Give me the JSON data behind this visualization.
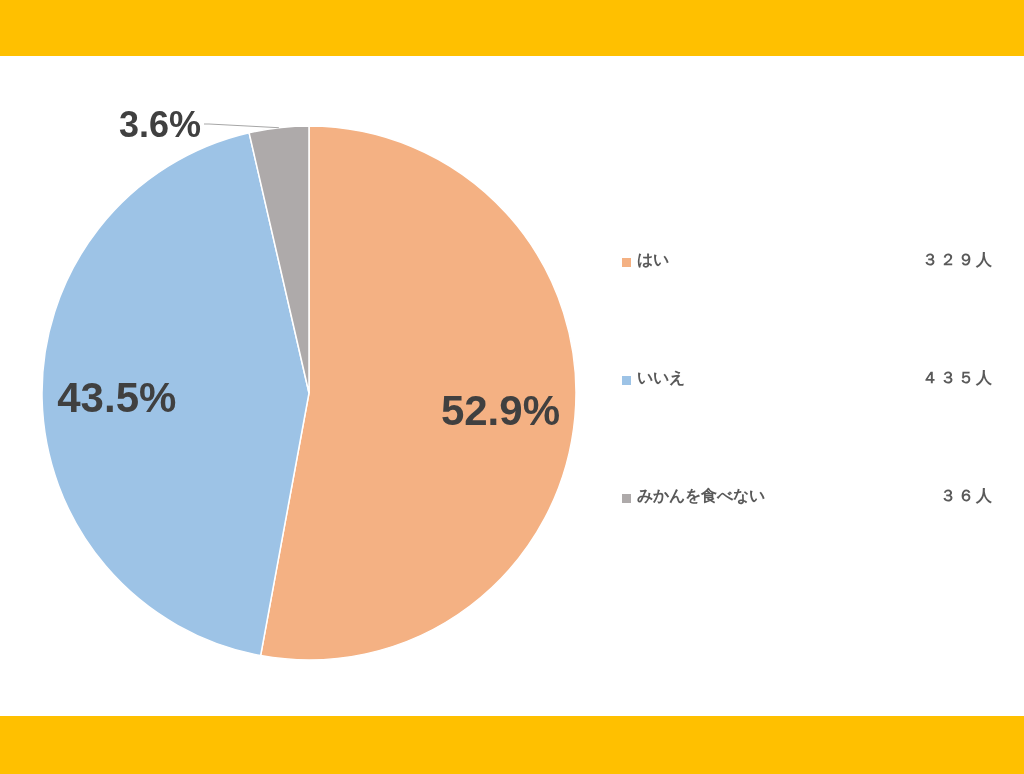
{
  "chart_data": {
    "type": "pie",
    "categories": [
      "はい",
      "いいえ",
      "みかんを食べない"
    ],
    "values": [
      52.9,
      43.5,
      3.6
    ],
    "colors": [
      "#f4b183",
      "#9dc3e6",
      "#aeaaaa"
    ],
    "value_labels": [
      "52.9%",
      "43.5%",
      "3.6%"
    ],
    "legend": "right",
    "annotations": [
      "３２９人",
      "４３５人",
      "３６人"
    ]
  }
}
